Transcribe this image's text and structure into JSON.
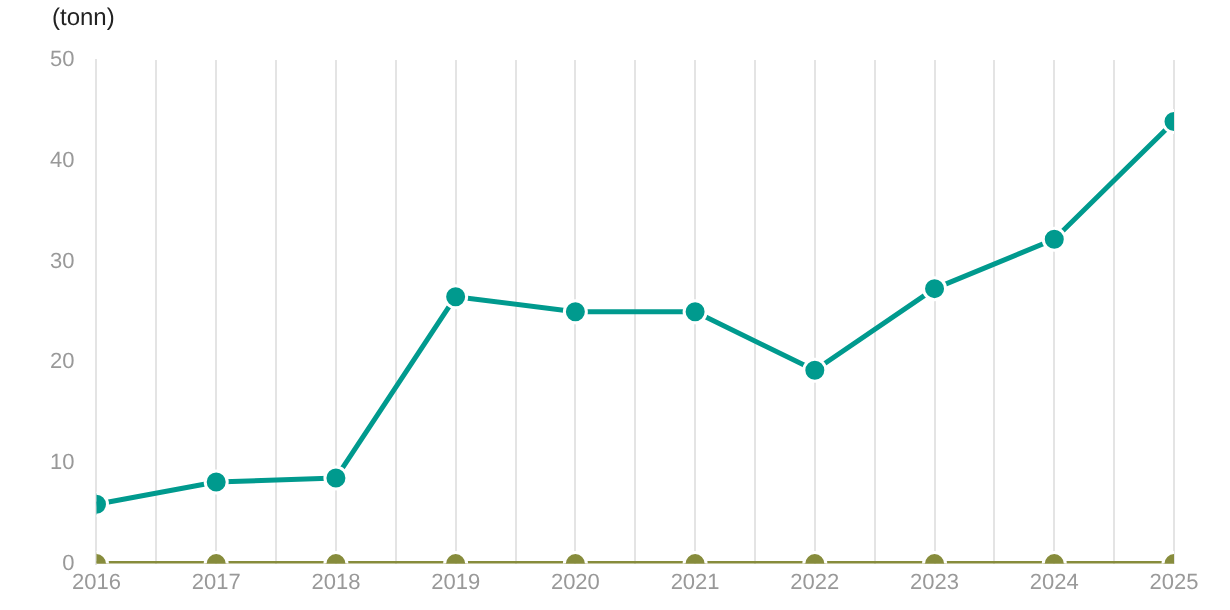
{
  "chart_data": {
    "type": "line",
    "ylabel": "(tonn)",
    "x": [
      2016,
      2017,
      2018,
      2019,
      2020,
      2021,
      2022,
      2023,
      2024,
      2025
    ],
    "series": [
      {
        "color": "#009a8e",
        "values": [
          5.9,
          8.1,
          8.5,
          26.5,
          25.0,
          25.0,
          19.2,
          27.3,
          32.2,
          43.9
        ]
      },
      {
        "color": "#878c3c",
        "values": [
          0,
          0,
          0,
          0,
          0,
          0,
          0,
          0,
          0,
          0
        ]
      }
    ],
    "xlim": [
      2016,
      2025
    ],
    "xticks": [
      2016,
      {
        "value": 2016.5,
        "label": null
      },
      2017,
      {
        "value": 2017.5,
        "label": null
      },
      2018,
      {
        "value": 2018.5,
        "label": null
      },
      2019,
      {
        "value": 2019.5,
        "label": null
      },
      2020,
      {
        "value": 2020.5,
        "label": null
      },
      2021,
      {
        "value": 2021.5,
        "label": null
      },
      2022,
      {
        "value": 2022.5,
        "label": null
      },
      2023,
      {
        "value": 2023.5,
        "label": null
      },
      2024,
      {
        "value": 2024.5,
        "label": null
      },
      2025
    ],
    "ylim": [
      0,
      50
    ],
    "yticks": [
      0,
      10,
      20,
      30,
      40,
      50
    ],
    "grid": "x",
    "legend": false,
    "marker": "circle",
    "line_style": "solid"
  }
}
